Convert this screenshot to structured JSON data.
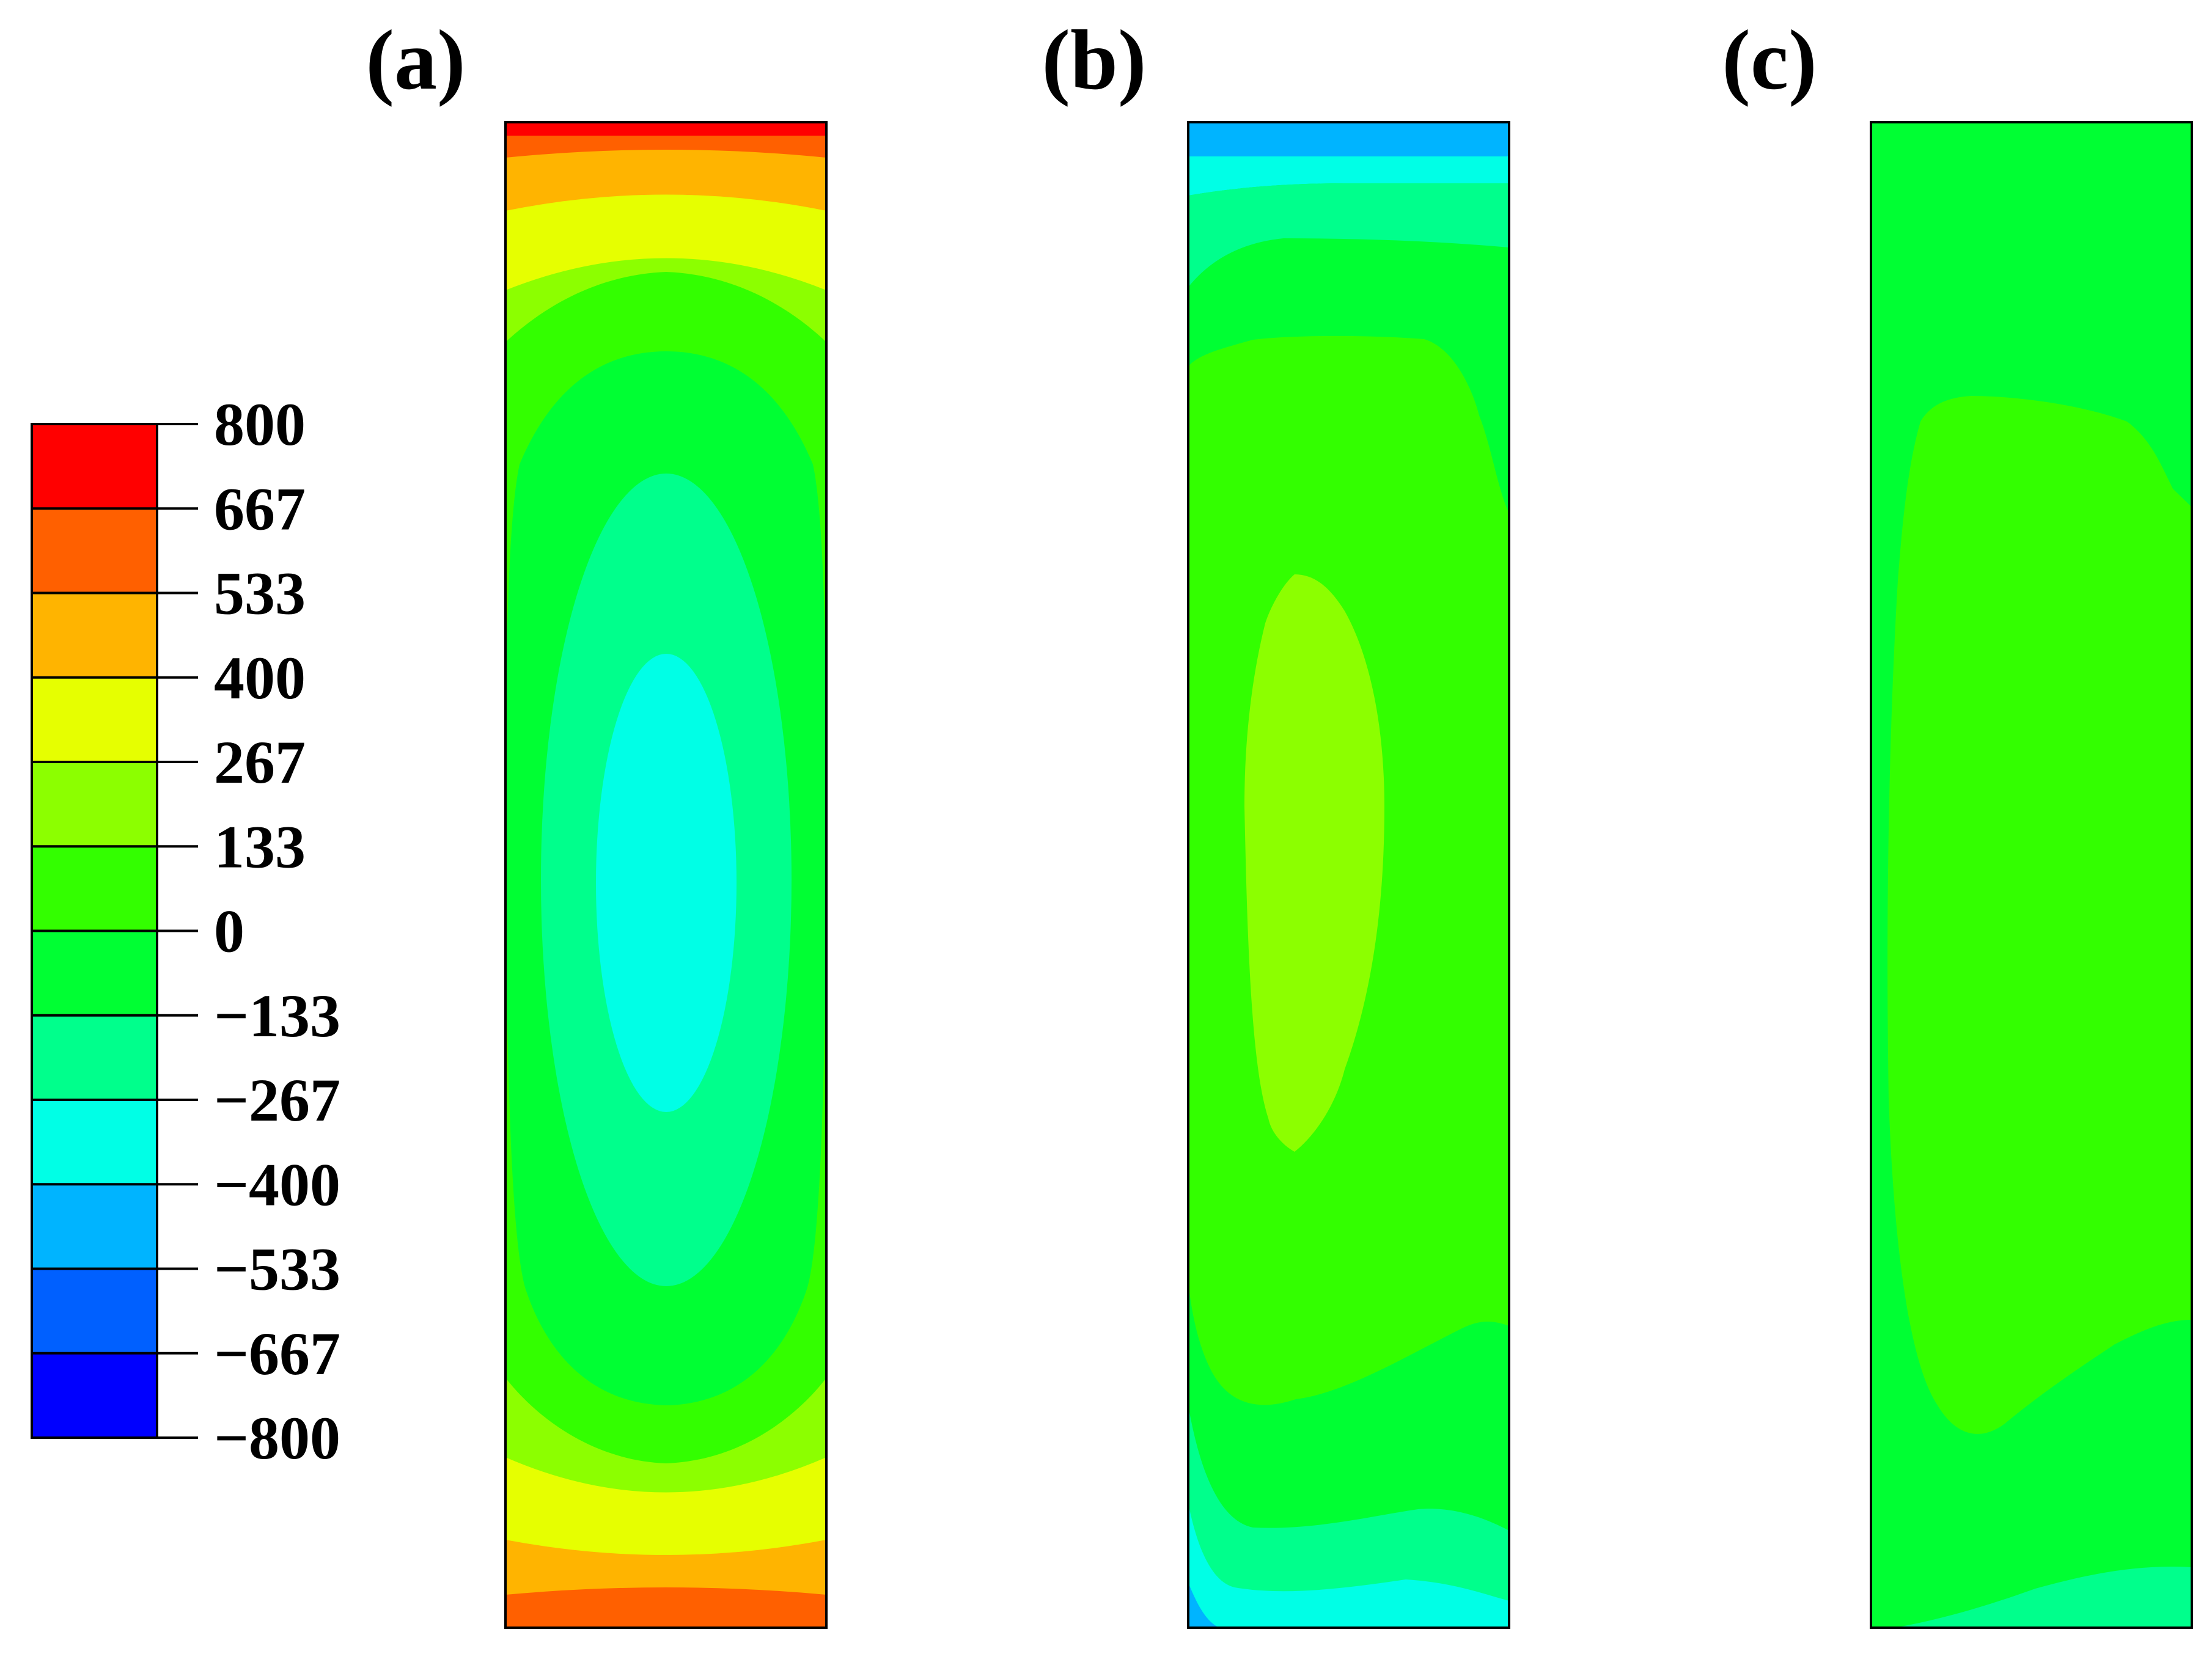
{
  "figure": {
    "panels": [
      {
        "id": "a",
        "label": "(a)"
      },
      {
        "id": "b",
        "label": "(b)"
      },
      {
        "id": "c",
        "label": "(c)"
      }
    ]
  },
  "colorbar": {
    "ticks": [
      "800",
      "667",
      "533",
      "400",
      "267",
      "133",
      "0",
      "−133",
      "−267",
      "−400",
      "−533",
      "−667",
      "−800"
    ],
    "levels_top_to_bottom": [
      {
        "range": "667 to 800",
        "color": "#ff0000"
      },
      {
        "range": "533 to 667",
        "color": "#ff6000"
      },
      {
        "range": "400 to 533",
        "color": "#ffb400"
      },
      {
        "range": "267 to 400",
        "color": "#e6ff00"
      },
      {
        "range": "133 to 267",
        "color": "#8cff00"
      },
      {
        "range": "0 to 133",
        "color": "#33ff00"
      },
      {
        "range": "-133 to 0",
        "color": "#00ff33"
      },
      {
        "range": "-267 to -133",
        "color": "#00ff8c"
      },
      {
        "range": "-400 to -267",
        "color": "#00ffe6"
      },
      {
        "range": "-533 to -400",
        "color": "#00b4ff"
      },
      {
        "range": "-667 to -533",
        "color": "#0060ff"
      },
      {
        "range": "-800 to -667",
        "color": "#0000ff"
      }
    ]
  }
}
